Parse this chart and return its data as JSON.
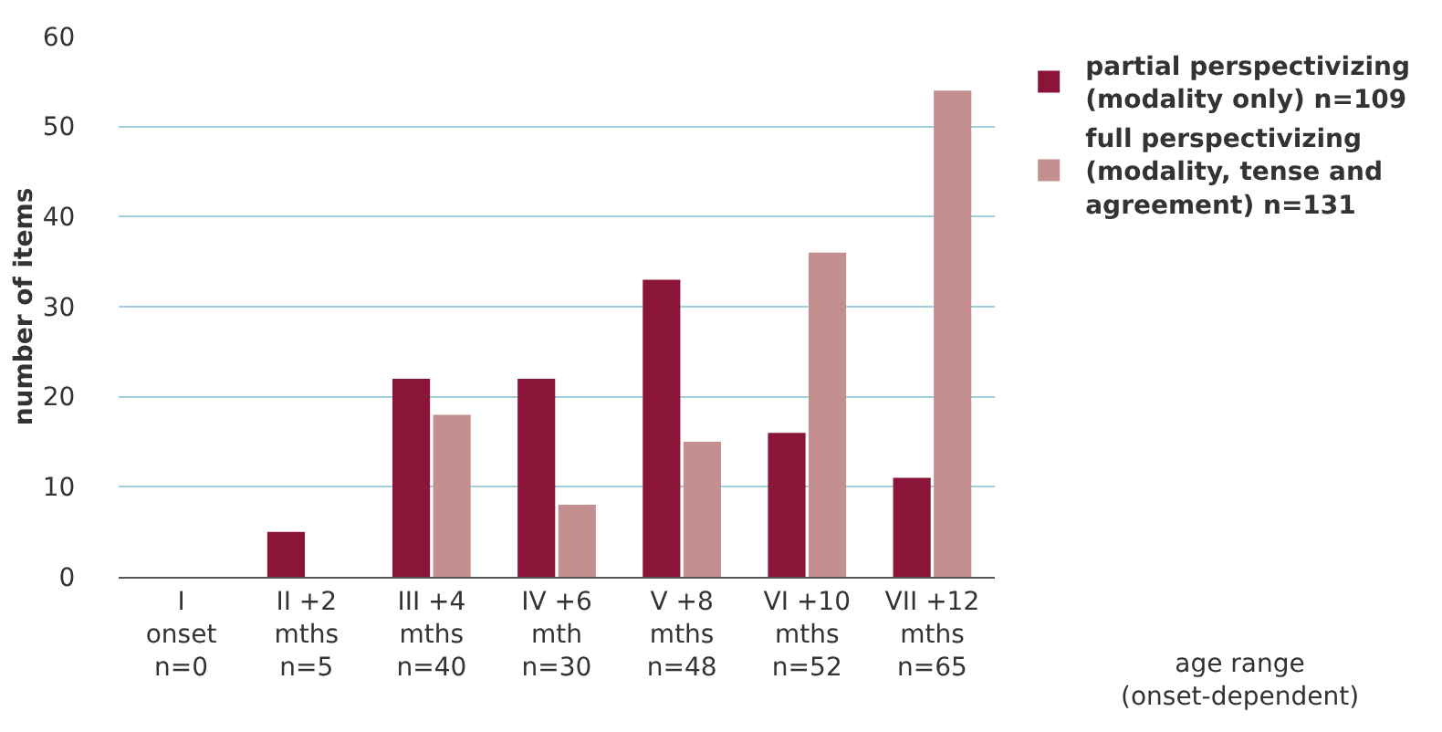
{
  "chart_data": {
    "type": "bar",
    "ylabel": "number of items",
    "xlabel": "age range\n(onset-dependent)",
    "categories": [
      "I\nonset\nn=0",
      "II +2\nmths\nn=5",
      "III +4\nmths\nn=40",
      "IV +6\nmth\nn=30",
      "V +8\nmths\nn=48",
      "VI +10\nmths\nn=52",
      "VII +12\nmths\nn=65"
    ],
    "series": [
      {
        "name": "partial perspectivizing\n(modality only) n=109",
        "color": "#8b1538",
        "values": [
          0,
          5,
          22,
          22,
          33,
          16,
          11
        ]
      },
      {
        "name": "full perspectivizing\n(modality, tense and\nagreement) n=131",
        "color": "#c4908f",
        "values": [
          0,
          0,
          18,
          8,
          15,
          36,
          54
        ]
      }
    ],
    "ylim": [
      0,
      60
    ],
    "yticks": [
      0,
      10,
      20,
      30,
      40,
      50,
      60
    ],
    "grid": "y",
    "legend": "top right"
  }
}
